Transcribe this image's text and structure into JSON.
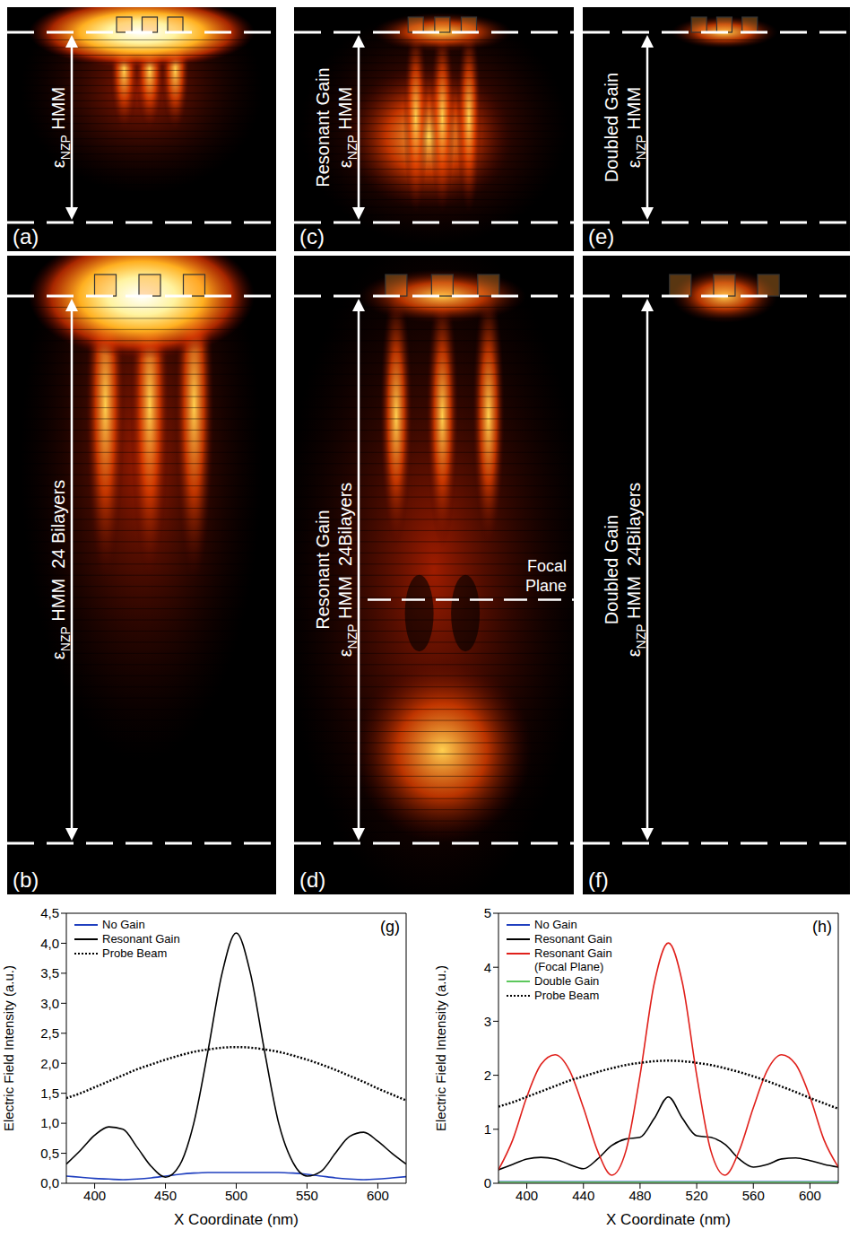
{
  "field_maps": [
    {
      "label": "(a)",
      "texts": [
        "εNZP HMM"
      ],
      "subscript": "NZP"
    },
    {
      "label": "(c)",
      "texts": [
        "Resonant Gain",
        "εNZP HMM"
      ],
      "subscript": "NZP"
    },
    {
      "label": "(e)",
      "texts": [
        "Doubled Gain",
        "εNZP HMM"
      ],
      "subscript": "NZP"
    },
    {
      "label": "(b)",
      "texts": [
        "εNZP HMM  24 Bilayers"
      ],
      "subscript": "NZP"
    },
    {
      "label": "(d)",
      "texts": [
        "Resonant Gain",
        "εNZP HMM  24Bilayers"
      ],
      "subscript": "NZP",
      "annotation": [
        "Focal",
        "Plane"
      ]
    },
    {
      "label": "(f)",
      "texts": [
        "Doubled Gain",
        "εNZP HMM  24Bilayers"
      ],
      "subscript": "NZP"
    }
  ],
  "chart_data": [
    {
      "type": "line",
      "panel_label": "(g)",
      "x_label": "X Coordinate (nm)",
      "y_label": "Electric Field Intensity (a.u.)",
      "xlim": [
        380,
        620
      ],
      "xticks": [
        400,
        450,
        500,
        550,
        600
      ],
      "ylim": [
        0,
        4.5
      ],
      "yticks": [
        {
          "value": 0,
          "label": "0,0"
        },
        {
          "value": 0.5,
          "label": "0,5"
        },
        {
          "value": 1,
          "label": "1,0"
        },
        {
          "value": 1.5,
          "label": "1,5"
        },
        {
          "value": 2,
          "label": "2,0"
        },
        {
          "value": 2.5,
          "label": "2,5"
        },
        {
          "value": 3,
          "label": "3,0"
        },
        {
          "value": 3.5,
          "label": "3,5"
        },
        {
          "value": 4,
          "label": "4,0"
        },
        {
          "value": 4.5,
          "label": "4,5"
        }
      ],
      "grid": false,
      "legend": "top-left",
      "x": [
        380,
        390,
        400,
        410,
        420,
        430,
        440,
        450,
        460,
        470,
        480,
        490,
        500,
        510,
        520,
        530,
        540,
        550,
        560,
        570,
        580,
        590,
        600,
        610,
        620
      ],
      "series": [
        {
          "name": "No Gain",
          "color": "#1f3fbf",
          "line_style": "solid",
          "values": [
            0.12,
            0.1,
            0.08,
            0.07,
            0.06,
            0.07,
            0.09,
            0.12,
            0.15,
            0.17,
            0.18,
            0.18,
            0.18,
            0.18,
            0.18,
            0.18,
            0.17,
            0.15,
            0.12,
            0.09,
            0.07,
            0.06,
            0.07,
            0.09,
            0.11
          ]
        },
        {
          "name": "Resonant Gain",
          "color": "#000000",
          "line_style": "solid",
          "values": [
            0.32,
            0.55,
            0.8,
            0.94,
            0.9,
            0.6,
            0.28,
            0.1,
            0.3,
            1.0,
            2.2,
            3.5,
            4.17,
            3.5,
            2.2,
            1.0,
            0.35,
            0.12,
            0.2,
            0.5,
            0.78,
            0.85,
            0.7,
            0.5,
            0.32
          ]
        },
        {
          "name": "Probe Beam",
          "color": "#000000",
          "line_style": "dotted",
          "values": [
            1.42,
            1.5,
            1.6,
            1.7,
            1.8,
            1.9,
            1.98,
            2.06,
            2.13,
            2.19,
            2.23,
            2.26,
            2.27,
            2.26,
            2.23,
            2.19,
            2.13,
            2.06,
            1.98,
            1.89,
            1.79,
            1.69,
            1.58,
            1.48,
            1.38
          ]
        }
      ]
    },
    {
      "type": "line",
      "panel_label": "(h)",
      "x_label": "X Coordinate (nm)",
      "y_label": "Electric Field Intensity (a.u.)",
      "xlim": [
        380,
        620
      ],
      "xticks": [
        400,
        440,
        480,
        520,
        560,
        600
      ],
      "ylim": [
        0,
        5
      ],
      "yticks": [
        0,
        1,
        2,
        3,
        4,
        5
      ],
      "grid": false,
      "legend": "top-left",
      "x": [
        380,
        390,
        400,
        410,
        420,
        430,
        440,
        450,
        460,
        470,
        480,
        490,
        500,
        510,
        520,
        530,
        540,
        550,
        560,
        570,
        580,
        590,
        600,
        610,
        620
      ],
      "series": [
        {
          "name": "No Gain",
          "color": "#1f3fbf",
          "line_style": "solid",
          "values": [
            0.03,
            0.03,
            0.03,
            0.03,
            0.03,
            0.03,
            0.03,
            0.03,
            0.03,
            0.03,
            0.03,
            0.03,
            0.03,
            0.03,
            0.03,
            0.03,
            0.03,
            0.03,
            0.03,
            0.03,
            0.03,
            0.03,
            0.03,
            0.03,
            0.03
          ]
        },
        {
          "name": "Resonant Gain",
          "color": "#000000",
          "line_style": "solid",
          "values": [
            0.25,
            0.35,
            0.45,
            0.48,
            0.45,
            0.35,
            0.27,
            0.45,
            0.7,
            0.82,
            0.85,
            1.2,
            1.6,
            1.2,
            0.88,
            0.85,
            0.72,
            0.45,
            0.3,
            0.35,
            0.45,
            0.47,
            0.42,
            0.35,
            0.3
          ]
        },
        {
          "name": "Resonant Gain (Focal Plane)",
          "color": "#e0201b",
          "line_style": "solid",
          "values": [
            0.25,
            0.8,
            1.6,
            2.2,
            2.38,
            2.1,
            1.4,
            0.6,
            0.15,
            0.6,
            2.0,
            3.7,
            4.45,
            3.7,
            2.0,
            0.6,
            0.15,
            0.6,
            1.4,
            2.1,
            2.38,
            2.2,
            1.6,
            0.8,
            0.3
          ]
        },
        {
          "name": "Double Gain",
          "color": "#5cc85c",
          "line_style": "solid",
          "values": [
            0.02,
            0.02,
            0.02,
            0.02,
            0.02,
            0.02,
            0.02,
            0.02,
            0.02,
            0.02,
            0.02,
            0.02,
            0.02,
            0.02,
            0.02,
            0.02,
            0.02,
            0.02,
            0.02,
            0.02,
            0.02,
            0.02,
            0.02,
            0.02,
            0.02
          ]
        },
        {
          "name": "Probe Beam",
          "color": "#000000",
          "line_style": "dotted",
          "values": [
            1.42,
            1.5,
            1.6,
            1.7,
            1.8,
            1.9,
            1.98,
            2.06,
            2.13,
            2.19,
            2.23,
            2.26,
            2.27,
            2.26,
            2.23,
            2.19,
            2.13,
            2.06,
            1.98,
            1.89,
            1.79,
            1.69,
            1.58,
            1.48,
            1.38
          ]
        }
      ]
    }
  ]
}
